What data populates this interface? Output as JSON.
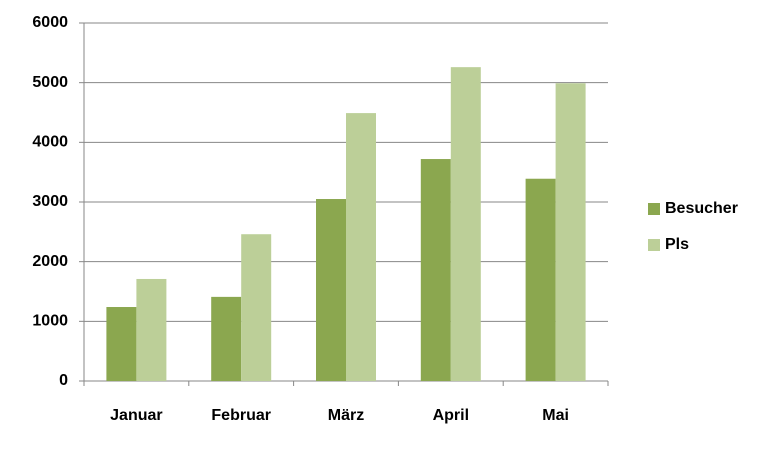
{
  "chart_data": {
    "type": "bar",
    "categories": [
      "Januar",
      "Februar",
      "März",
      "April",
      "Mai"
    ],
    "series": [
      {
        "name": "Besucher",
        "color": "#8ba74f",
        "values": [
          1240,
          1410,
          3050,
          3720,
          3390
        ]
      },
      {
        "name": "Pls",
        "color": "#bccf98",
        "values": [
          1710,
          2460,
          4490,
          5260,
          4990
        ]
      }
    ],
    "ylim": [
      0,
      6000
    ],
    "yticks": [
      0,
      1000,
      2000,
      3000,
      4000,
      5000,
      6000
    ],
    "grid": true,
    "legend": "right"
  }
}
